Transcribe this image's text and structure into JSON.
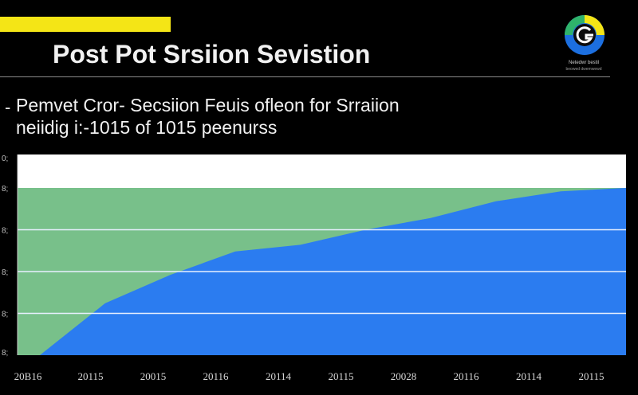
{
  "slide": {
    "title": "Post Pot Srsiion Sevistion",
    "subtitle_line1": "Pemvet Cror- Secsiion Feuis ofleon for  Srraiion",
    "subtitle_line2": "neiidig i:-1015 of 1015 peenurss",
    "logo_text": "Netedwr bestil",
    "logo_subtext": "beowed dwemwewd",
    "accent_color": "#f4e516"
  },
  "chart_data": {
    "type": "area",
    "x": [
      2016,
      2017,
      2018,
      2019,
      2020,
      2021,
      2022,
      2023,
      2024,
      2025
    ],
    "xtick_labels": [
      "20B16",
      "20115",
      "20015",
      "20116",
      "20114",
      "20115",
      "20028",
      "20116",
      "20114",
      "20115"
    ],
    "ytick_labels": [
      "0;",
      "8;",
      "8;",
      "8;",
      "8;",
      "8;"
    ],
    "series": [
      {
        "color": "#2b7cf0",
        "values": [
          0,
          31,
          48,
          62,
          66,
          75,
          82,
          92,
          98,
          100
        ]
      },
      {
        "color": "#78c08a",
        "values": [
          100,
          100,
          100,
          100,
          100,
          100,
          100,
          100,
          100,
          100
        ]
      }
    ],
    "ylim": [
      0,
      100
    ],
    "grid": true,
    "legend": "none",
    "background_color": "#ffffff"
  }
}
